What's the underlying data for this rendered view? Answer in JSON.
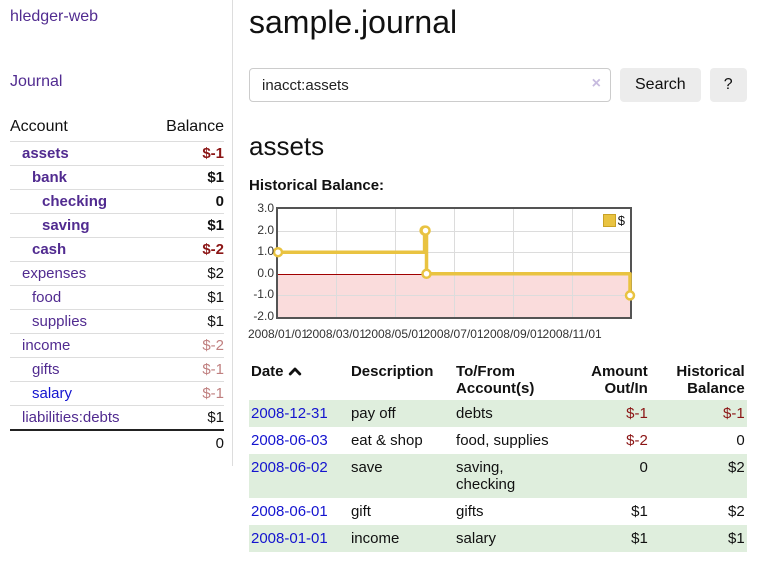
{
  "app": {
    "title": "hledger-web"
  },
  "sidebar": {
    "journal_link": "Journal",
    "accounts": {
      "headers": {
        "account": "Account",
        "balance": "Balance"
      },
      "rows": [
        {
          "name": "assets",
          "balance": "$-1",
          "depth": 1,
          "bold": true,
          "neg": "strong"
        },
        {
          "name": "bank",
          "balance": "$1",
          "depth": 2,
          "bold": true
        },
        {
          "name": "checking",
          "balance": "0",
          "depth": 3,
          "bold": true
        },
        {
          "name": "saving",
          "balance": "$1",
          "depth": 3,
          "bold": true
        },
        {
          "name": "cash",
          "balance": "$-2",
          "depth": 2,
          "bold": true,
          "neg": "strong"
        },
        {
          "name": "expenses",
          "balance": "$2",
          "depth": 1
        },
        {
          "name": "food",
          "balance": "$1",
          "depth": 2
        },
        {
          "name": "supplies",
          "balance": "$1",
          "depth": 2
        },
        {
          "name": "income",
          "balance": "$-2",
          "depth": 1,
          "neg": "faded"
        },
        {
          "name": "gifts",
          "balance": "$-1",
          "depth": 2,
          "neg": "faded"
        },
        {
          "name": "salary",
          "balance": "$-1",
          "depth": 2,
          "neg": "faded",
          "blue": true
        },
        {
          "name": "liabilities:debts",
          "balance": "$1",
          "depth": 1
        }
      ],
      "total": "0"
    }
  },
  "main": {
    "title": "sample.journal",
    "search": {
      "value": "inacct:assets",
      "clear_icon": "×",
      "search_button": "Search",
      "help_button": "?"
    },
    "account_heading": "assets",
    "chart_title": "Historical Balance:"
  },
  "chart_data": {
    "type": "line",
    "step": true,
    "title": "Historical Balance:",
    "series": [
      {
        "name": "$",
        "color": "#e9c341",
        "points": [
          [
            "2008-01-01",
            1
          ],
          [
            "2008-06-01",
            2
          ],
          [
            "2008-06-02",
            2
          ],
          [
            "2008-06-03",
            0
          ],
          [
            "2008-12-31",
            -1
          ]
        ]
      }
    ],
    "x_range": [
      "2008-01-01",
      "2008-12-31"
    ],
    "ylim": [
      -2,
      3
    ],
    "y_ticks": [
      3,
      2,
      1,
      0,
      -1,
      -2
    ],
    "y_tick_labels": [
      "3.0",
      "2.0",
      "1.0",
      "0.0",
      "-1.0",
      "-2.0"
    ],
    "x_tick_labels": [
      "2008/01/01",
      "2008/03/01",
      "2008/05/01",
      "2008/07/01",
      "2008/09/01",
      "2008/11/01"
    ],
    "grid": true,
    "legend": {
      "label": "$",
      "position": "top-right"
    },
    "negative_region": true,
    "zero_line_color": "#a00000",
    "negative_region_color": "#fadcdc"
  },
  "register": {
    "headers": {
      "date": "Date",
      "description": "Description",
      "accounts": "To/From Account(s)",
      "amount": "Amount Out/In",
      "balance": "Historical Balance"
    },
    "rows": [
      {
        "date": "2008-12-31",
        "description": "pay off",
        "accounts": "debts",
        "amount": "$-1",
        "amount_neg": true,
        "balance": "$-1",
        "balance_neg": true
      },
      {
        "date": "2008-06-03",
        "description": "eat & shop",
        "accounts": "food, supplies",
        "amount": "$-2",
        "amount_neg": true,
        "balance": "0",
        "balance_neg": false
      },
      {
        "date": "2008-06-02",
        "description": "save",
        "accounts": "saving, checking",
        "amount": "0",
        "amount_neg": false,
        "balance": "$2",
        "balance_neg": false
      },
      {
        "date": "2008-06-01",
        "description": "gift",
        "accounts": "gifts",
        "amount": "$1",
        "amount_neg": false,
        "balance": "$2",
        "balance_neg": false
      },
      {
        "date": "2008-01-01",
        "description": "income",
        "accounts": "salary",
        "amount": "$1",
        "amount_neg": false,
        "balance": "$1",
        "balance_neg": false
      }
    ]
  },
  "colors": {
    "link_purple": "#512b90",
    "link_blue": "#1414cf",
    "negative_strong": "#8b1515",
    "negative_faded": "#c08080",
    "row_green": "#dfeedd",
    "series_yellow": "#e9c341",
    "chart_border": "#545454",
    "zero_line": "#a00000",
    "negative_fill": "#fadcdc"
  }
}
